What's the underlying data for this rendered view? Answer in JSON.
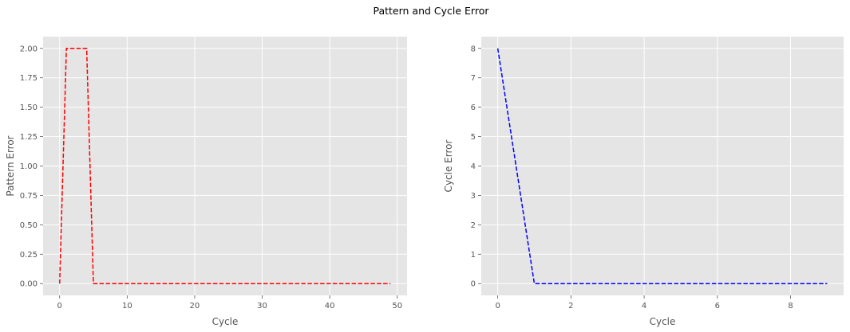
{
  "title": "Pattern and Cycle Error",
  "chart_data": [
    {
      "type": "line",
      "xlabel": "Cycle",
      "ylabel": "Pattern Error",
      "xlim": [
        -2.45,
        51.45
      ],
      "ylim": [
        -0.1,
        2.1
      ],
      "xticks": [
        0,
        10,
        20,
        30,
        40,
        50
      ],
      "yticks": [
        0.0,
        0.25,
        0.5,
        0.75,
        1.0,
        1.25,
        1.5,
        1.75,
        2.0
      ],
      "ytick_decimals": 2,
      "grid": true,
      "color": "#ff0000",
      "linestyle": "dashed",
      "x": [
        0,
        1,
        2,
        3,
        4,
        5,
        6,
        7,
        8,
        9,
        10,
        11,
        12,
        13,
        14,
        15,
        16,
        17,
        18,
        19,
        20,
        21,
        22,
        23,
        24,
        25,
        26,
        27,
        28,
        29,
        30,
        31,
        32,
        33,
        34,
        35,
        36,
        37,
        38,
        39,
        40,
        41,
        42,
        43,
        44,
        45,
        46,
        47,
        48,
        49
      ],
      "y": [
        0,
        2,
        2,
        2,
        2,
        0,
        0,
        0,
        0,
        0,
        0,
        0,
        0,
        0,
        0,
        0,
        0,
        0,
        0,
        0,
        0,
        0,
        0,
        0,
        0,
        0,
        0,
        0,
        0,
        0,
        0,
        0,
        0,
        0,
        0,
        0,
        0,
        0,
        0,
        0,
        0,
        0,
        0,
        0,
        0,
        0,
        0,
        0,
        0,
        0
      ]
    },
    {
      "type": "line",
      "xlabel": "Cycle",
      "ylabel": "Cycle Error",
      "xlim": [
        -0.45,
        9.45
      ],
      "ylim": [
        -0.4,
        8.4
      ],
      "xticks": [
        0,
        2,
        4,
        6,
        8
      ],
      "yticks": [
        0,
        1,
        2,
        3,
        4,
        5,
        6,
        7,
        8
      ],
      "ytick_decimals": 0,
      "grid": true,
      "color": "#0000ff",
      "linestyle": "dashed",
      "x": [
        0,
        1,
        2,
        3,
        4,
        5,
        6,
        7,
        8,
        9
      ],
      "y": [
        8,
        0,
        0,
        0,
        0,
        0,
        0,
        0,
        0,
        0
      ]
    }
  ]
}
